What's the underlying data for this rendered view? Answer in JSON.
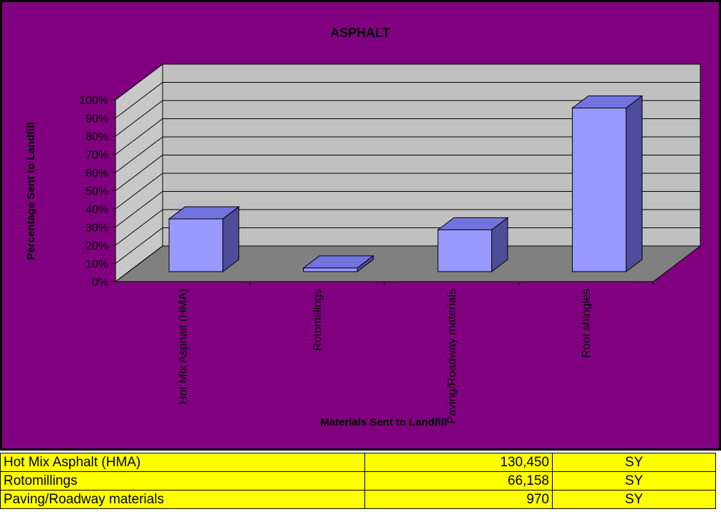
{
  "chart_data": {
    "type": "bar3d",
    "title": "ASPHALT",
    "y_label": "Percentage Sent to Landfill",
    "x_label": "Materials Sent to Landfill",
    "categories": [
      "Hot Mix Asphalt (HMA)",
      "Rotomillings",
      "Paving/Roadway materials",
      "Roof shingles"
    ],
    "values": [
      29,
      2,
      23,
      90
    ],
    "color": "#9999ff",
    "ylim": [
      0,
      100
    ],
    "yticks": [
      {
        "value": 0,
        "label": "0%"
      },
      {
        "value": 10,
        "label": "10%"
      },
      {
        "value": 20,
        "label": "20%"
      },
      {
        "value": 30,
        "label": "30%"
      },
      {
        "value": 40,
        "label": "40%"
      },
      {
        "value": 50,
        "label": "50%"
      },
      {
        "value": 60,
        "label": "60%"
      },
      {
        "value": 70,
        "label": "70%"
      },
      {
        "value": 80,
        "label": "80%"
      },
      {
        "value": 90,
        "label": "90%"
      },
      {
        "value": 100,
        "label": "100%"
      }
    ],
    "grid": true
  },
  "table": {
    "rows": [
      [
        "Hot Mix Asphalt (HMA)",
        "130,450",
        "SY"
      ],
      [
        "Rotomillings",
        "66,158",
        "SY"
      ],
      [
        "Paving/Roadway materials",
        "970",
        "SY"
      ]
    ]
  }
}
